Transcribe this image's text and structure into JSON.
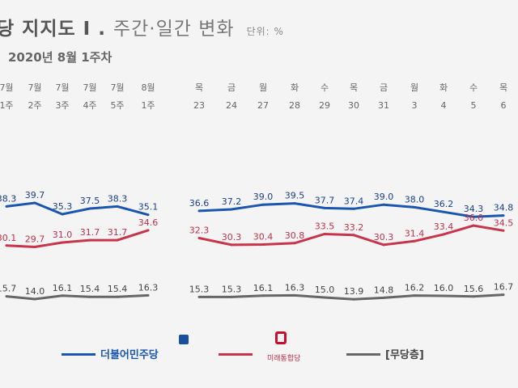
{
  "title_main": "당 지지도 I .",
  "title_sub": "주간·일간 변화",
  "unit": "단위: %",
  "subtitle": "2020년 8월 1주차",
  "chart_data": {
    "type": "line",
    "weekly": {
      "month_labels": [
        "7월",
        "7월",
        "7월",
        "7월",
        "7월",
        "8월"
      ],
      "week_labels": [
        "1주",
        "2주",
        "3주",
        "4주",
        "5주",
        "1주"
      ],
      "series": [
        {
          "key": "blue",
          "values": [
            38.3,
            39.7,
            35.3,
            37.5,
            38.3,
            35.1
          ]
        },
        {
          "key": "red",
          "values": [
            30.1,
            29.7,
            31.0,
            31.7,
            31.7,
            34.6
          ]
        },
        {
          "key": "gray",
          "values": [
            15.7,
            14.0,
            16.1,
            15.4,
            15.4,
            16.3
          ]
        }
      ]
    },
    "daily": {
      "weekday_labels": [
        "목",
        "금",
        "월",
        "화",
        "수",
        "목",
        "금",
        "월",
        "화",
        "수",
        "목"
      ],
      "date_labels": [
        "23",
        "24",
        "27",
        "28",
        "29",
        "30",
        "31",
        "3",
        "4",
        "5",
        "6"
      ],
      "series": [
        {
          "key": "blue",
          "values": [
            36.6,
            37.2,
            39.0,
            39.5,
            37.7,
            37.4,
            39.0,
            38.0,
            36.2,
            34.3,
            34.8
          ]
        },
        {
          "key": "red",
          "values": [
            32.3,
            30.3,
            30.4,
            30.8,
            33.5,
            33.2,
            30.3,
            31.4,
            33.4,
            36.0,
            34.5
          ]
        },
        {
          "key": "gray",
          "values": [
            15.3,
            15.3,
            16.1,
            16.3,
            15.0,
            13.9,
            14.8,
            16.2,
            16.0,
            15.6,
            16.7
          ]
        }
      ]
    }
  },
  "legend": {
    "blue_label": "더불어민주당",
    "red_label": "미래통합당",
    "gray_label": "[무당층]"
  },
  "colors": {
    "blue": "#1a56b0",
    "red": "#c8344a",
    "gray": "#666666",
    "label_blue": "#1a3f8a",
    "label_red": "#c0304a",
    "label_gray": "#444444",
    "axis": "#666666"
  }
}
